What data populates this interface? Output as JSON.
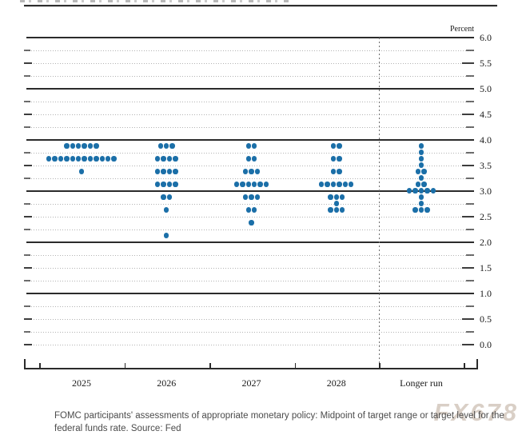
{
  "chart_data": {
    "type": "scatter",
    "subtype": "fomc-dot-plot",
    "unit_label": "Percent",
    "dot_color": "#1b6fa8",
    "y_axis": {
      "min": 0.0,
      "max": 6.0,
      "grid_step": 0.25,
      "label_step": 0.5,
      "solid_lines": [
        6.0,
        5.0,
        4.0,
        3.0,
        2.0,
        1.0
      ],
      "tick_labels": [
        "6.0",
        "5.5",
        "5.0",
        "4.5",
        "4.0",
        "3.5",
        "3.0",
        "2.5",
        "2.0",
        "1.5",
        "1.0",
        "0.5",
        "0.0"
      ]
    },
    "categories": [
      "2025",
      "2026",
      "2027",
      "2028",
      "Longer run"
    ],
    "separator_before_category": "Longer run",
    "series": [
      {
        "category": "2025",
        "dots": [
          {
            "rate": 3.875,
            "count": 6
          },
          {
            "rate": 3.625,
            "count": 12
          },
          {
            "rate": 3.375,
            "count": 1
          }
        ]
      },
      {
        "category": "2026",
        "dots": [
          {
            "rate": 3.875,
            "count": 3
          },
          {
            "rate": 3.625,
            "count": 4
          },
          {
            "rate": 3.375,
            "count": 4
          },
          {
            "rate": 3.125,
            "count": 4
          },
          {
            "rate": 2.875,
            "count": 2
          },
          {
            "rate": 2.625,
            "count": 1
          },
          {
            "rate": 2.125,
            "count": 1
          }
        ]
      },
      {
        "category": "2027",
        "dots": [
          {
            "rate": 3.875,
            "count": 2
          },
          {
            "rate": 3.625,
            "count": 2
          },
          {
            "rate": 3.375,
            "count": 3
          },
          {
            "rate": 3.125,
            "count": 6
          },
          {
            "rate": 2.875,
            "count": 3
          },
          {
            "rate": 2.625,
            "count": 2
          },
          {
            "rate": 2.375,
            "count": 1
          }
        ]
      },
      {
        "category": "2028",
        "dots": [
          {
            "rate": 3.875,
            "count": 2
          },
          {
            "rate": 3.625,
            "count": 2
          },
          {
            "rate": 3.375,
            "count": 2
          },
          {
            "rate": 3.125,
            "count": 6
          },
          {
            "rate": 2.875,
            "count": 3
          },
          {
            "rate": 2.75,
            "count": 1
          },
          {
            "rate": 2.625,
            "count": 3
          }
        ]
      },
      {
        "category": "Longer run",
        "dots": [
          {
            "rate": 3.875,
            "count": 1
          },
          {
            "rate": 3.75,
            "count": 1
          },
          {
            "rate": 3.625,
            "count": 1
          },
          {
            "rate": 3.5,
            "count": 1
          },
          {
            "rate": 3.375,
            "count": 2
          },
          {
            "rate": 3.25,
            "count": 1
          },
          {
            "rate": 3.125,
            "count": 2
          },
          {
            "rate": 3.0,
            "count": 5
          },
          {
            "rate": 2.875,
            "count": 1
          },
          {
            "rate": 2.75,
            "count": 1
          },
          {
            "rate": 2.625,
            "count": 3
          }
        ]
      }
    ]
  },
  "caption": {
    "text": "FOMC participants' assessments of appropriate monetary policy: Midpoint of target range or target level for the federal funds rate. Source: Fed"
  },
  "watermark": {
    "text": "FX678"
  }
}
